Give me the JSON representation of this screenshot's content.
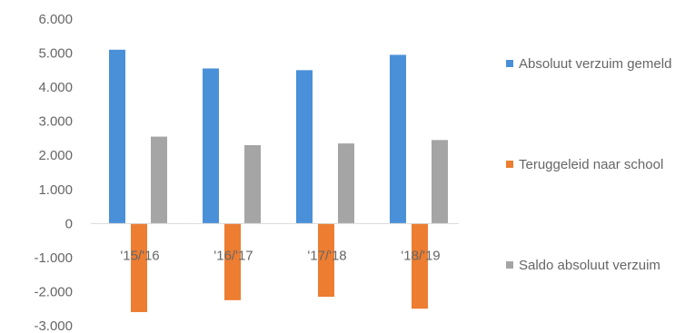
{
  "chart_data": {
    "type": "bar",
    "categories": [
      "'15/'16",
      "'16/'17",
      "'17/'18",
      "'18/'19"
    ],
    "series": [
      {
        "name": "Absoluut verzuim gemeld",
        "color": "#4a90d9",
        "values": [
          5100,
          4550,
          4500,
          4950
        ]
      },
      {
        "name": "Teruggeleid naar school",
        "color": "#ed7d31",
        "values": [
          -2600,
          -2250,
          -2150,
          -2500
        ]
      },
      {
        "name": "Saldo absoluut verzuim",
        "color": "#a5a5a5",
        "values": [
          2550,
          2300,
          2350,
          2450
        ]
      }
    ],
    "y_ticks": [
      "6.000",
      "5.000",
      "4.000",
      "3.000",
      "2.000",
      "1.000",
      "0",
      "-1.000",
      "-2.000",
      "-3.000"
    ],
    "ylim": [
      -3000,
      6000
    ],
    "grid": false,
    "legend_position": "right"
  }
}
